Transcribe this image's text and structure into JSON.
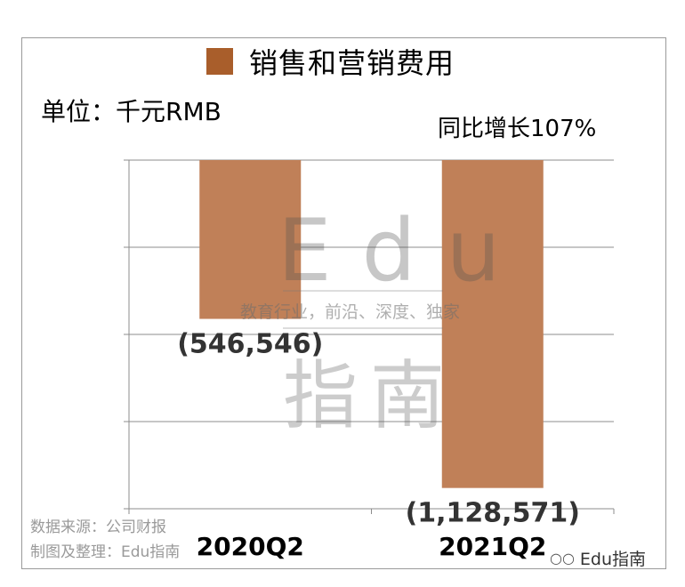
{
  "chart_data": {
    "type": "bar",
    "title": "销售和营销费用",
    "unit_label": "单位：千元RMB",
    "annotation": "同比增长107%",
    "categories": [
      "2020Q2",
      "2021Q2"
    ],
    "series": [
      {
        "name": "销售和营销费用",
        "values": [
          -546546,
          -1128571
        ]
      }
    ],
    "data_labels": [
      "(546,546)",
      "(1,128,571)"
    ],
    "ylim": [
      -1200000,
      0
    ],
    "grid": true,
    "legend": "top-center",
    "bar_color": "#C08058",
    "legend_color": "#A95E2B"
  },
  "footer": {
    "source": "数据来源：公司财报",
    "made_by": "制图及整理：Edu指南",
    "brand": "Edu指南"
  },
  "watermark": {
    "logo": "Edu",
    "tagline": "教育行业，前沿、深度、独家",
    "name": "指南"
  }
}
